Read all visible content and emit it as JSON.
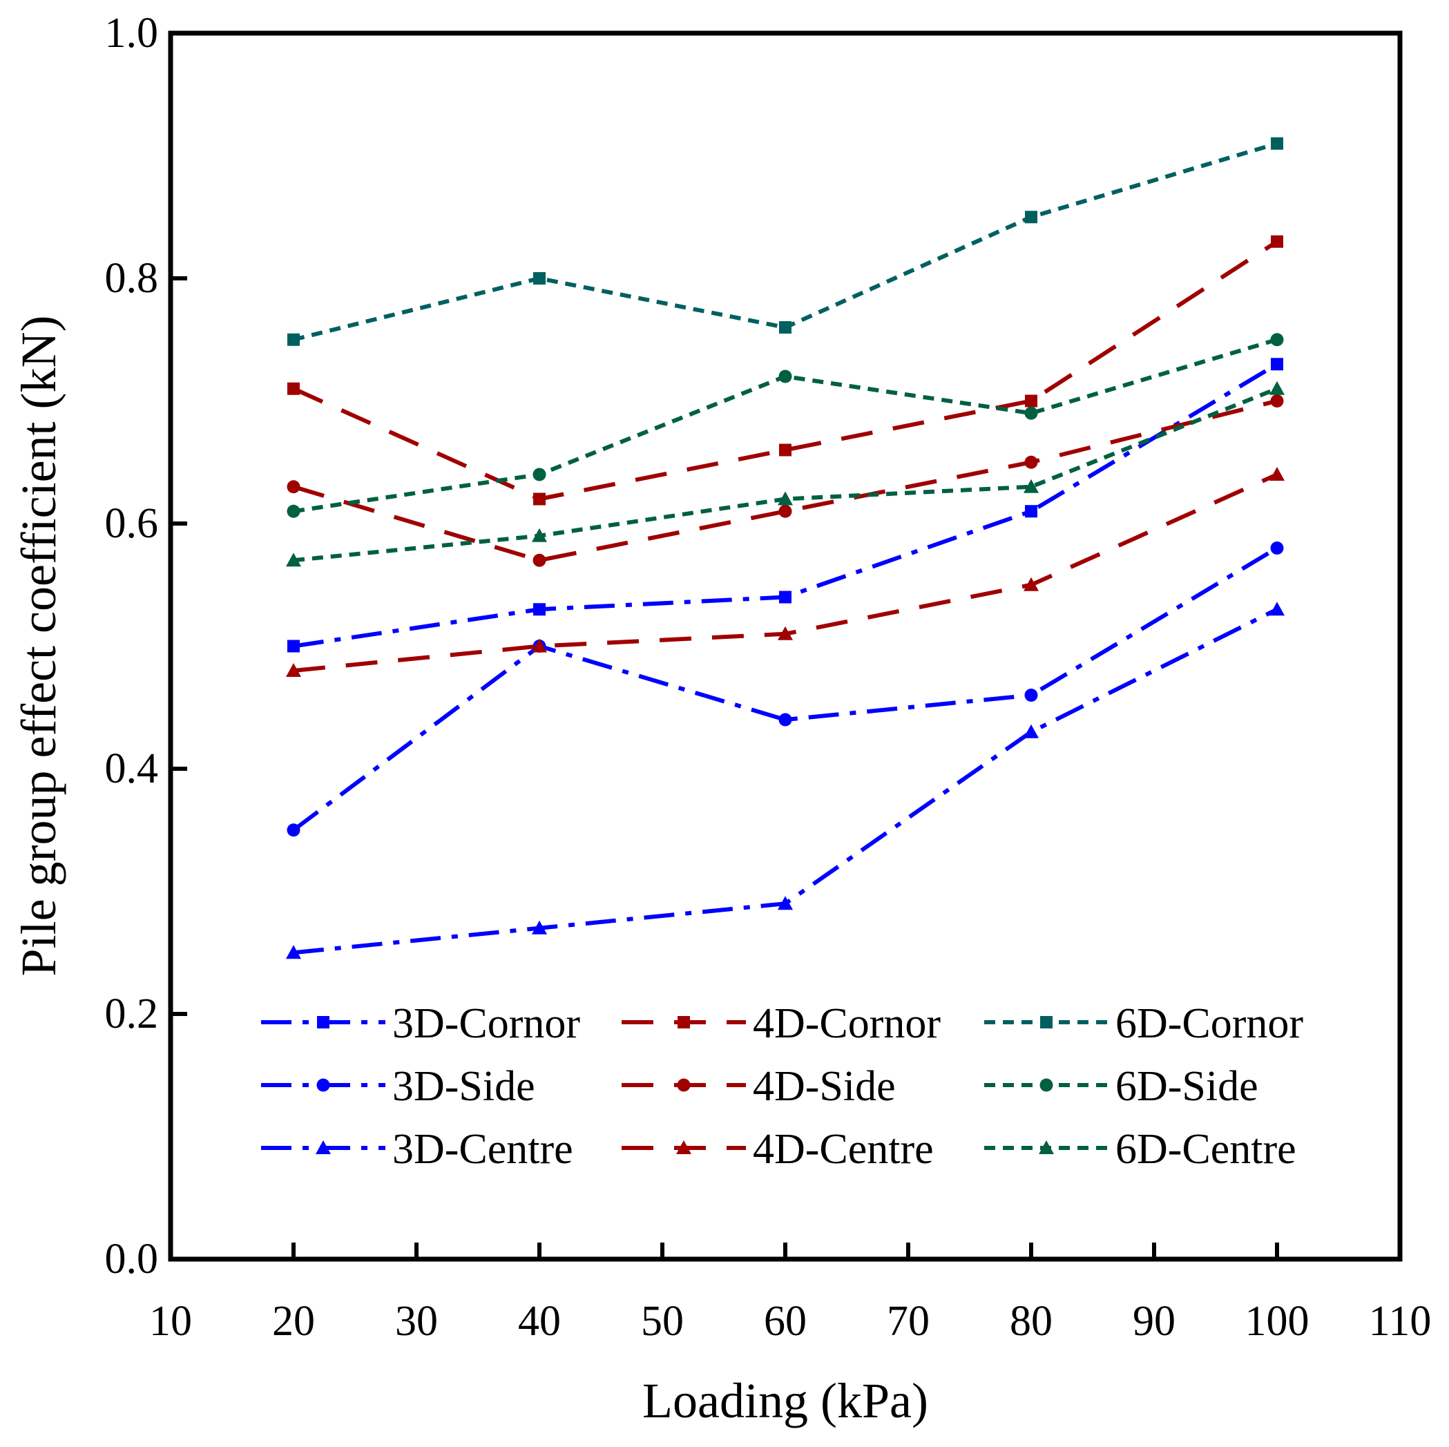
{
  "chart_data": {
    "type": "line",
    "title": "",
    "xlabel": "Loading (kPa)",
    "ylabel": "Pile group effect coefficient (kN)",
    "xlim": [
      10,
      110
    ],
    "ylim": [
      0.0,
      1.0
    ],
    "x_ticks": [
      10,
      20,
      30,
      40,
      50,
      60,
      70,
      80,
      90,
      100,
      110
    ],
    "x_tick_labels": [
      "10",
      "20",
      "30",
      "40",
      "50",
      "60",
      "70",
      "80",
      "90",
      "100",
      "110"
    ],
    "y_ticks": [
      0.0,
      0.2,
      0.4,
      0.6,
      0.8,
      1.0
    ],
    "y_tick_labels": [
      "0.0",
      "0.2",
      "0.4",
      "0.6",
      "0.8",
      "1.0"
    ],
    "grid": false,
    "legend_position": "lower-center",
    "x": [
      20,
      40,
      60,
      80,
      100
    ],
    "series": [
      {
        "name": "3D-Cornor",
        "color": "#0000FF",
        "marker": "square",
        "dash": "dash-dot",
        "values": [
          0.5,
          0.53,
          0.54,
          0.61,
          0.73
        ]
      },
      {
        "name": "3D-Side",
        "color": "#0000FF",
        "marker": "circle",
        "dash": "dash-dot",
        "values": [
          0.35,
          0.5,
          0.44,
          0.46,
          0.58
        ]
      },
      {
        "name": "3D-Centre",
        "color": "#0000FF",
        "marker": "triangle",
        "dash": "dash-dot",
        "values": [
          0.25,
          0.27,
          0.29,
          0.43,
          0.53
        ]
      },
      {
        "name": "4D-Cornor",
        "color": "#A00000",
        "marker": "square",
        "dash": "dash",
        "values": [
          0.71,
          0.62,
          0.66,
          0.7,
          0.83
        ]
      },
      {
        "name": "4D-Side",
        "color": "#A00000",
        "marker": "circle",
        "dash": "dash",
        "values": [
          0.63,
          0.57,
          0.61,
          0.65,
          0.7
        ]
      },
      {
        "name": "4D-Centre",
        "color": "#A00000",
        "marker": "triangle",
        "dash": "dash",
        "values": [
          0.48,
          0.5,
          0.51,
          0.55,
          0.64
        ]
      },
      {
        "name": "6D-Cornor",
        "color": "#006060",
        "marker": "square",
        "dash": "short-dash",
        "values": [
          0.75,
          0.8,
          0.76,
          0.85,
          0.91
        ]
      },
      {
        "name": "6D-Side",
        "color": "#006040",
        "marker": "circle",
        "dash": "short-dash",
        "values": [
          0.61,
          0.64,
          0.72,
          0.69,
          0.75
        ]
      },
      {
        "name": "6D-Centre",
        "color": "#006040",
        "marker": "triangle",
        "dash": "short-dash",
        "values": [
          0.57,
          0.59,
          0.62,
          0.63,
          0.71
        ]
      }
    ]
  }
}
